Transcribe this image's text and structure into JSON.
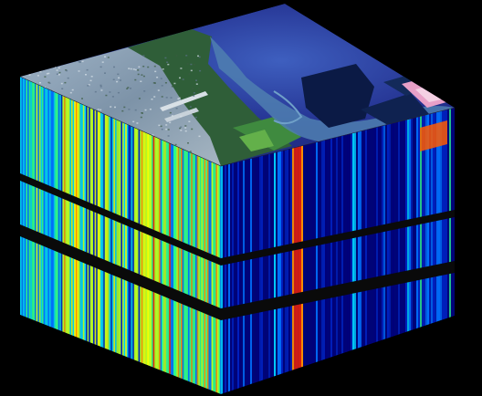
{
  "figure": {
    "subject": "hyperspectral-data-cube",
    "top_face": "true-color-aerial-image",
    "side_faces": "spectral-band-intensity-stripes",
    "colors": {
      "background": "#000000",
      "water_deep": "#1a2a7a",
      "water_light": "#3e5fbf",
      "land_urban": "#8fa3b8",
      "vegetation": "#2f6b3a",
      "tidal_flat": "#5f8fb8",
      "salt_pond_pink": "#e8a0c8",
      "band_gap": "#0a0a0a"
    },
    "colormap": [
      "#00007a",
      "#0020c0",
      "#0070ff",
      "#00d0ff",
      "#30ff90",
      "#c0ff20",
      "#ffff00",
      "#ff9000",
      "#ff2000",
      "#a00000"
    ],
    "band_gaps_count": 2
  }
}
